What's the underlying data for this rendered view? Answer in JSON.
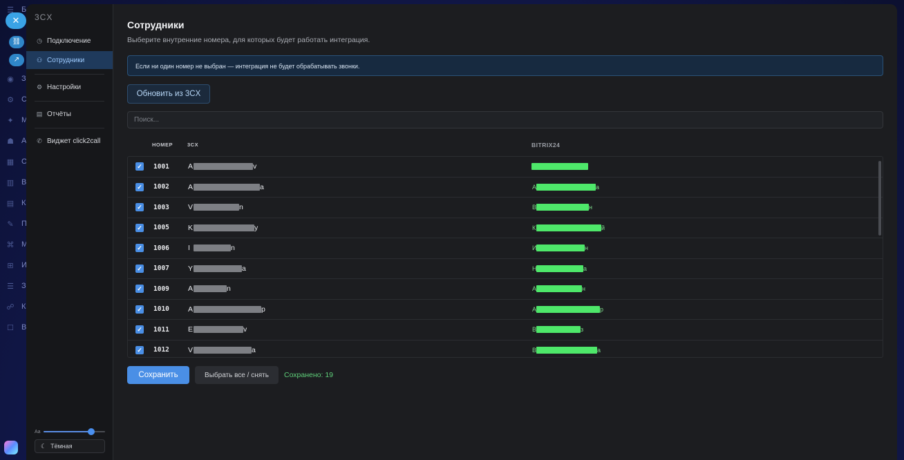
{
  "background": {
    "letters": [
      "Б",
      "С",
      "С",
      "З",
      "С",
      "М",
      "А",
      "О",
      "В",
      "К",
      "П",
      "М",
      "И",
      "З",
      "К",
      "В"
    ],
    "close_icon": "close-icon"
  },
  "sidebar": {
    "brand": "3CX",
    "items": [
      {
        "label": "Подключение",
        "icon": "clock-icon"
      },
      {
        "label": "Сотрудники",
        "icon": "users-icon"
      },
      {
        "label": "Настройки",
        "icon": "gear-icon"
      },
      {
        "label": "Отчёты",
        "icon": "report-icon"
      },
      {
        "label": "Виджет click2call",
        "icon": "phone-icon"
      }
    ],
    "font_size_label": "Aa",
    "font_size_level": 0.78,
    "theme_label": "Тёмная"
  },
  "page": {
    "title": "Сотрудники",
    "subtitle": "Выберите внутренние номера, для которых будет работать интеграция.",
    "alert": "Если ни один номер не выбран — интеграция не будет обрабатывать звонки.",
    "refresh_label": "Обновить из 3CX",
    "search_placeholder": "Поиск..."
  },
  "table": {
    "headers": {
      "number": "НОМЕР",
      "threecx": "3CX",
      "bitrix": "BITRIX24"
    },
    "rows": [
      {
        "number": "1001",
        "first": "A",
        "last": "v",
        "b_first": "",
        "b_last": ""
      },
      {
        "number": "1002",
        "first": "A",
        "last": "a",
        "b_first": "А",
        "b_last": "а"
      },
      {
        "number": "1003",
        "first": "V",
        "last": "n",
        "b_first": "В",
        "b_last": "н"
      },
      {
        "number": "1005",
        "first": "K",
        "last": "y",
        "b_first": "К",
        "b_last": "й"
      },
      {
        "number": "1006",
        "first": "I",
        "last": "n",
        "b_first": "И",
        "b_last": "н"
      },
      {
        "number": "1007",
        "first": "Y",
        "last": "a",
        "b_first": "Н",
        "b_last": "а"
      },
      {
        "number": "1009",
        "first": "A",
        "last": "n",
        "b_first": "А",
        "b_last": "н"
      },
      {
        "number": "1010",
        "first": "A",
        "last": "p",
        "b_first": "А",
        "b_last": "р"
      },
      {
        "number": "1011",
        "first": "E",
        "last": "v",
        "b_first": "В",
        "b_last": "з"
      },
      {
        "number": "1012",
        "first": "V",
        "last": "a",
        "b_first": "В",
        "b_last": "а"
      }
    ]
  },
  "actions": {
    "save_label": "Сохранить",
    "toggle_label": "Выбрать все / снять",
    "saved_status": "Сохранено: 19"
  },
  "colors": {
    "accent": "#4a8fe6",
    "success": "#5fd07a",
    "redact_gray": "#7d7f84",
    "redact_green": "#4ee86a"
  }
}
